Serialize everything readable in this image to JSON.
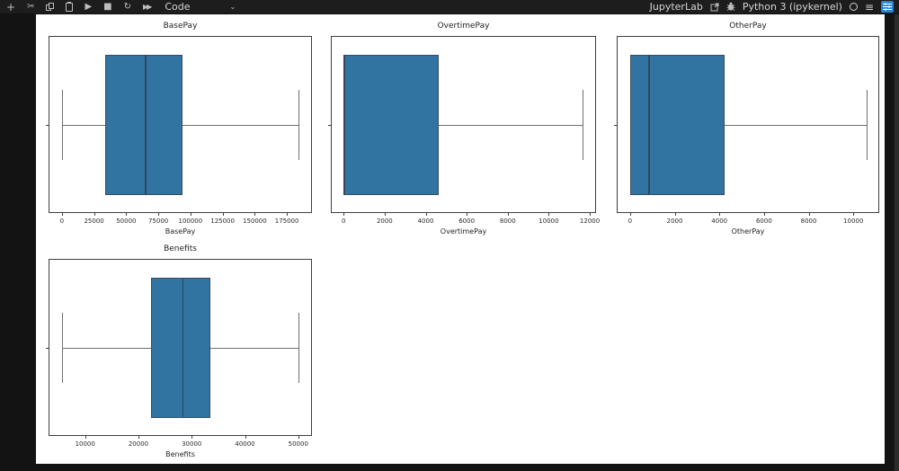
{
  "toolbar": {
    "buttons": [
      {
        "name": "insert-cell",
        "glyph": "+"
      },
      {
        "name": "cut-cells",
        "glyph": "✂"
      },
      {
        "name": "copy-cells",
        "glyph": ""
      },
      {
        "name": "paste-cells",
        "glyph": ""
      },
      {
        "name": "run-cell",
        "glyph": "▶"
      },
      {
        "name": "interrupt-kernel",
        "glyph": "■"
      },
      {
        "name": "restart-kernel",
        "glyph": "↻"
      },
      {
        "name": "restart-run-all",
        "glyph": "▶▶"
      }
    ],
    "cell_type": "Code",
    "cell_type_chevron": "⌄",
    "right": {
      "jupyterlab_label": "JupyterLab",
      "kernel_name": "Python 3 (ipykernel)",
      "hamburger_glyph": "≡"
    }
  },
  "colors": {
    "box_fill": "#3274a1",
    "box_edge": "#3b4a5a",
    "median": "#31465c",
    "whisker": "#6f6f6f",
    "toolbar_bg": "#1d1d1d",
    "page_bg": "#131313",
    "figure_bg": "#ffffff",
    "accent_blue": "#1e88e5"
  },
  "chart_data": [
    {
      "type": "box",
      "orientation": "horizontal",
      "title": "BasePay",
      "xlabel": "BasePay",
      "xlim": [
        -9700,
        193800
      ],
      "ticks": [
        0,
        25000,
        50000,
        75000,
        100000,
        125000,
        150000,
        175000
      ],
      "stats": {
        "whislo": 0,
        "q1": 34000,
        "med": 64500,
        "q3": 94000,
        "whishi": 184000
      }
    },
    {
      "type": "box",
      "orientation": "horizontal",
      "title": "OvertimePay",
      "xlabel": "OvertimePay",
      "xlim": [
        -580,
        12260
      ],
      "ticks": [
        0,
        2000,
        4000,
        6000,
        8000,
        10000,
        12000
      ],
      "stats": {
        "whislo": 0,
        "q1": 0,
        "med": 0,
        "q3": 4650,
        "whishi": 11650
      }
    },
    {
      "type": "box",
      "orientation": "horizontal",
      "title": "OtherPay",
      "xlabel": "OtherPay",
      "xlim": [
        -560,
        11120
      ],
      "ticks": [
        0,
        2000,
        4000,
        6000,
        8000,
        10000
      ],
      "stats": {
        "whislo": 0,
        "q1": 0,
        "med": 810,
        "q3": 4250,
        "whishi": 10600
      }
    },
    {
      "type": "box",
      "orientation": "horizontal",
      "title": "Benefits",
      "xlabel": "Benefits",
      "xlim": [
        3300,
        52400
      ],
      "ticks": [
        10000,
        20000,
        30000,
        40000,
        50000
      ],
      "stats": {
        "whislo": 5700,
        "q1": 22300,
        "med": 28200,
        "q3": 33500,
        "whishi": 50000
      }
    }
  ]
}
